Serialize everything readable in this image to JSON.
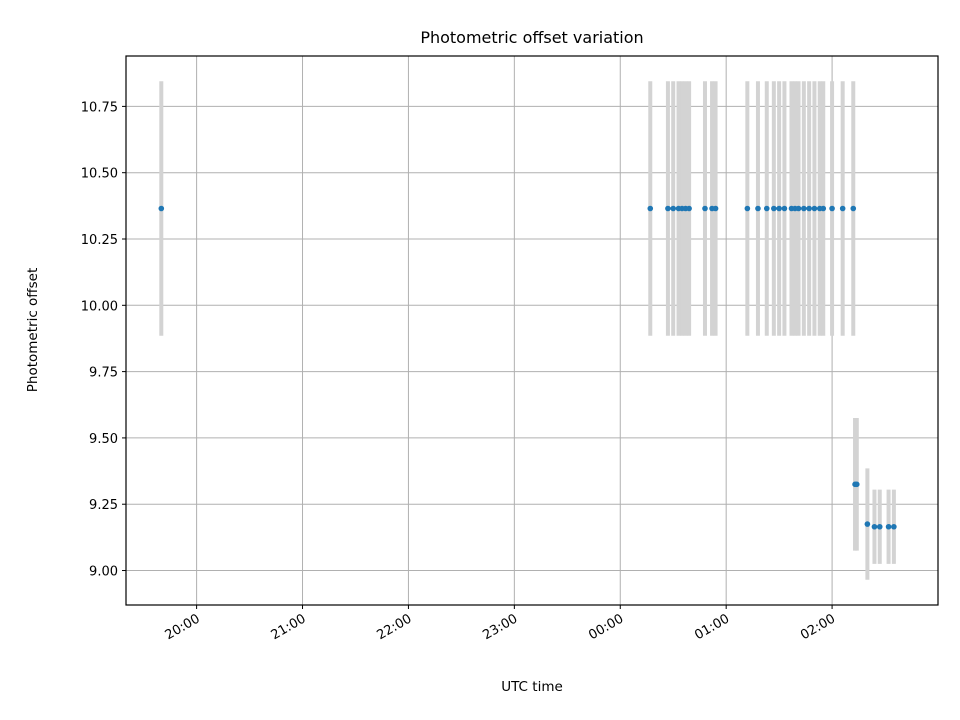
{
  "chart_data": {
    "type": "scatter",
    "title": "Photometric offset variation",
    "xlabel": "UTC time",
    "ylabel": "Photometric offset",
    "x_axis": {
      "kind": "time",
      "range": [
        "19:20",
        "27:00"
      ],
      "ticks": [
        "20:00",
        "21:00",
        "22:00",
        "23:00",
        "00:00",
        "01:00",
        "02:00"
      ],
      "tick_label_rotation": 30
    },
    "y_axis": {
      "range": [
        8.87,
        10.94
      ],
      "ticks": [
        "9.00",
        "9.25",
        "9.50",
        "9.75",
        "10.00",
        "10.25",
        "10.50",
        "10.75"
      ]
    },
    "grid": true,
    "colors": {
      "points": "#1f77b4",
      "errorbars": "#d3d3d3",
      "grid": "#b0b0b0"
    },
    "series": [
      {
        "points": [
          {
            "x": "19:40",
            "y": 10.365,
            "err": 0.48
          },
          {
            "x": "00:17",
            "y": 10.365,
            "err": 0.48
          },
          {
            "x": "00:27",
            "y": 10.365,
            "err": 0.48
          },
          {
            "x": "00:30",
            "y": 10.365,
            "err": 0.48
          },
          {
            "x": "00:33",
            "y": 10.365,
            "err": 0.48
          },
          {
            "x": "00:35",
            "y": 10.365,
            "err": 0.48
          },
          {
            "x": "00:37",
            "y": 10.365,
            "err": 0.48
          },
          {
            "x": "00:39",
            "y": 10.365,
            "err": 0.48
          },
          {
            "x": "00:48",
            "y": 10.365,
            "err": 0.48
          },
          {
            "x": "00:52",
            "y": 10.365,
            "err": 0.48
          },
          {
            "x": "00:54",
            "y": 10.365,
            "err": 0.48
          },
          {
            "x": "01:12",
            "y": 10.365,
            "err": 0.48
          },
          {
            "x": "01:18",
            "y": 10.365,
            "err": 0.48
          },
          {
            "x": "01:23",
            "y": 10.365,
            "err": 0.48
          },
          {
            "x": "01:27",
            "y": 10.365,
            "err": 0.48
          },
          {
            "x": "01:30",
            "y": 10.365,
            "err": 0.48
          },
          {
            "x": "01:33",
            "y": 10.365,
            "err": 0.48
          },
          {
            "x": "01:37",
            "y": 10.365,
            "err": 0.48
          },
          {
            "x": "01:39",
            "y": 10.365,
            "err": 0.48
          },
          {
            "x": "01:41",
            "y": 10.365,
            "err": 0.48
          },
          {
            "x": "01:44",
            "y": 10.365,
            "err": 0.48
          },
          {
            "x": "01:47",
            "y": 10.365,
            "err": 0.48
          },
          {
            "x": "01:50",
            "y": 10.365,
            "err": 0.48
          },
          {
            "x": "01:53",
            "y": 10.365,
            "err": 0.48
          },
          {
            "x": "01:55",
            "y": 10.365,
            "err": 0.48
          },
          {
            "x": "02:00",
            "y": 10.365,
            "err": 0.48
          },
          {
            "x": "02:06",
            "y": 10.365,
            "err": 0.48
          },
          {
            "x": "02:12",
            "y": 10.365,
            "err": 0.48
          },
          {
            "x": "02:13",
            "y": 9.325,
            "err": 0.25
          },
          {
            "x": "02:14",
            "y": 9.325,
            "err": 0.25
          },
          {
            "x": "02:20",
            "y": 9.175,
            "err": 0.21
          },
          {
            "x": "02:24",
            "y": 9.165,
            "err": 0.14
          },
          {
            "x": "02:27",
            "y": 9.165,
            "err": 0.14
          },
          {
            "x": "02:32",
            "y": 9.165,
            "err": 0.14
          },
          {
            "x": "02:35",
            "y": 9.165,
            "err": 0.14
          }
        ]
      }
    ]
  }
}
